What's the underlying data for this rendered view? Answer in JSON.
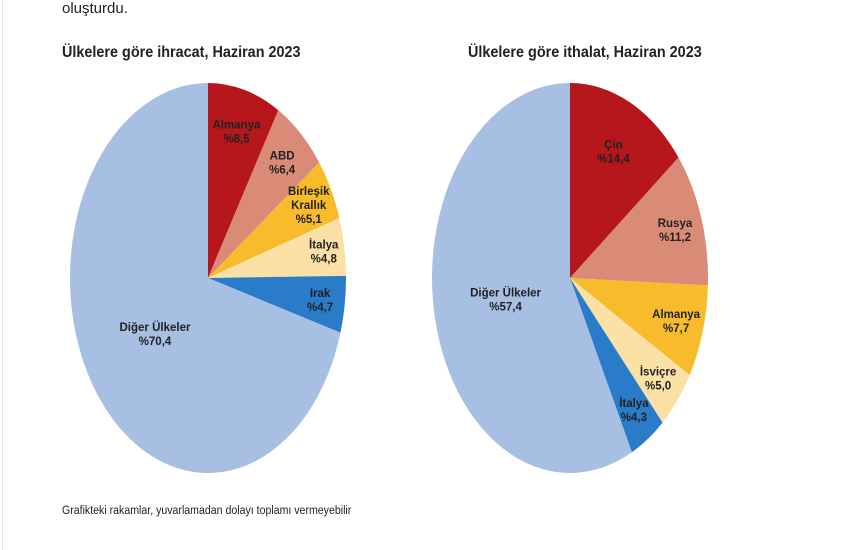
{
  "header_text": "oluşturdu.",
  "footnote": "Grafikteki rakamlar, yuvarlamadan dolayı toplamı vermeyebilir",
  "chart_data": [
    {
      "type": "pie",
      "title": "Ülkelere göre ihracat, Haziran 2023",
      "slices": [
        {
          "label": "Almanya",
          "value": 8.5,
          "text": "%8,5",
          "color": "#b5171d"
        },
        {
          "label": "ABD",
          "value": 6.4,
          "text": "%6,4",
          "color": "#d98b78"
        },
        {
          "label": "Birleşik Krallık",
          "value": 5.1,
          "text": "%5,1",
          "color": "#f8bb2b"
        },
        {
          "label": "İtalya",
          "value": 4.8,
          "text": "%4,8",
          "color": "#fbe1a6"
        },
        {
          "label": "Irak",
          "value": 4.7,
          "text": "%4,7",
          "color": "#2a7cc8"
        },
        {
          "label": "Diğer Ülkeler",
          "value": 70.4,
          "text": "%70,4",
          "color": "#a7bfe2"
        }
      ]
    },
    {
      "type": "pie",
      "title": "Ülkelere göre ithalat, Haziran 2023",
      "slices": [
        {
          "label": "Çin",
          "value": 14.4,
          "text": "%14,4",
          "color": "#b5171d"
        },
        {
          "label": "Rusya",
          "value": 11.2,
          "text": "%11,2",
          "color": "#d98b78"
        },
        {
          "label": "Almanya",
          "value": 7.7,
          "text": "%7,7",
          "color": "#f8bb2b"
        },
        {
          "label": "İsviçre",
          "value": 5.0,
          "text": "%5,0",
          "color": "#fbe1a6"
        },
        {
          "label": "İtalya",
          "value": 4.3,
          "text": "%4,3",
          "color": "#2a7cc8"
        },
        {
          "label": "Diğer Ülkeler",
          "value": 57.4,
          "text": "%57,4",
          "color": "#a7bfe2"
        }
      ]
    }
  ]
}
